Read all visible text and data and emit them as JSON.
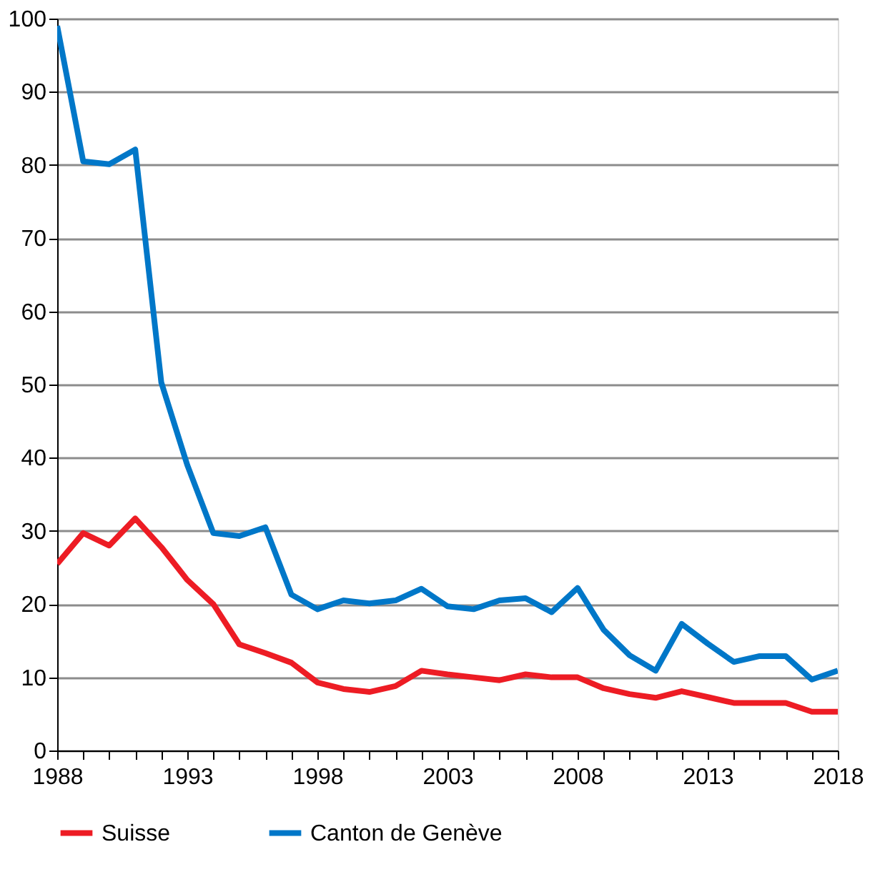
{
  "chart_data": {
    "type": "line",
    "x": [
      1988,
      1989,
      1990,
      1991,
      1992,
      1993,
      1994,
      1995,
      1996,
      1997,
      1998,
      1999,
      2000,
      2001,
      2002,
      2003,
      2004,
      2005,
      2006,
      2007,
      2008,
      2009,
      2010,
      2011,
      2012,
      2013,
      2014,
      2015,
      2016,
      2017,
      2018
    ],
    "series": [
      {
        "name": "Suisse",
        "color": "#ed1c24",
        "values": [
          25.5,
          29.7,
          28,
          31.7,
          27.8,
          23.3,
          20,
          14.5,
          13.3,
          12,
          9.3,
          8.4,
          8,
          8.8,
          10.9,
          10.4,
          10,
          9.6,
          10.4,
          10,
          10,
          8.5,
          7.7,
          7.2,
          8.1,
          7.3,
          6.5,
          6.5,
          6.5,
          5.3,
          5.3
        ]
      },
      {
        "name": "Canton de Genève",
        "color": "#0077c8",
        "values": [
          99,
          80.5,
          80.1,
          82.1,
          50.3,
          39,
          29.7,
          29.3,
          30.5,
          21.3,
          19.3,
          20.5,
          20.1,
          20.5,
          22.1,
          19.7,
          19.3,
          20.5,
          20.8,
          18.9,
          22.2,
          16.5,
          13,
          10.9,
          17.3,
          14.6,
          12.1,
          12.9,
          12.9,
          9.7,
          10.9
        ]
      }
    ],
    "xlim": [
      1988,
      2018
    ],
    "xticks": [
      1988,
      {
        "value": 1989,
        "label": null
      },
      {
        "value": 1990,
        "label": null
      },
      {
        "value": 1991,
        "label": null
      },
      {
        "value": 1992,
        "label": null
      },
      1993,
      {
        "value": 1994,
        "label": null
      },
      {
        "value": 1995,
        "label": null
      },
      {
        "value": 1996,
        "label": null
      },
      {
        "value": 1997,
        "label": null
      },
      1998,
      {
        "value": 1999,
        "label": null
      },
      {
        "value": 2000,
        "label": null
      },
      {
        "value": 2001,
        "label": null
      },
      {
        "value": 2002,
        "label": null
      },
      2003,
      {
        "value": 2004,
        "label": null
      },
      {
        "value": 2005,
        "label": null
      },
      {
        "value": 2006,
        "label": null
      },
      {
        "value": 2007,
        "label": null
      },
      2008,
      {
        "value": 2009,
        "label": null
      },
      {
        "value": 2010,
        "label": null
      },
      {
        "value": 2011,
        "label": null
      },
      {
        "value": 2012,
        "label": null
      },
      2013,
      {
        "value": 2014,
        "label": null
      },
      {
        "value": 2015,
        "label": null
      },
      {
        "value": 2016,
        "label": null
      },
      {
        "value": 2017,
        "label": null
      },
      2018
    ],
    "ylim": [
      0,
      100
    ],
    "yticks": [
      0,
      10,
      20,
      30,
      40,
      50,
      60,
      70,
      80,
      90,
      100
    ],
    "grid": "y",
    "legend": "bottom",
    "marker": "none",
    "line_style": "solid"
  }
}
